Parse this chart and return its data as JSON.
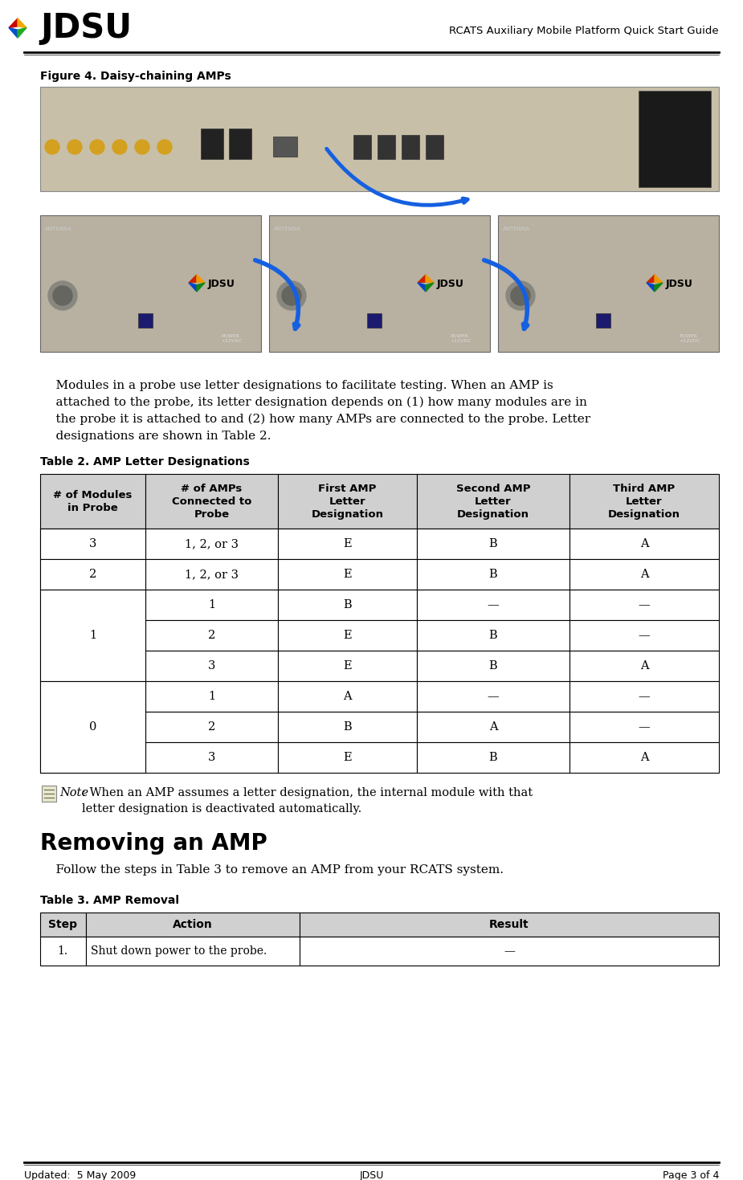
{
  "page_title": "RCATS Auxiliary Mobile Platform Quick Start Guide",
  "figure_caption": "Figure 4. Daisy-chaining AMPs",
  "body_text": "    Modules in a probe use letter designations to facilitate testing. When an AMP is\n    attached to the probe, its letter designation depends on (1) how many modules are in\n    the probe it is attached to and (2) how many AMPs are connected to the probe. Letter\n    designations are shown in Table 2.",
  "table2_title": "Table 2. AMP Letter Designations",
  "table2_headers": [
    "# of Modules\nin Probe",
    "# of AMPs\nConnected to\nProbe",
    "First AMP\nLetter\nDesignation",
    "Second AMP\nLetter\nDesignation",
    "Third AMP\nLetter\nDesignation"
  ],
  "table2_data": [
    [
      "3",
      "1, 2, or 3",
      "E",
      "B",
      "A"
    ],
    [
      "2",
      "1, 2, or 3",
      "E",
      "B",
      "A"
    ],
    [
      "1",
      "1",
      "B",
      "—",
      "—"
    ],
    [
      "",
      "2",
      "E",
      "B",
      "—"
    ],
    [
      "",
      "3",
      "E",
      "B",
      "A"
    ],
    [
      "0",
      "1",
      "A",
      "—",
      "—"
    ],
    [
      "",
      "2",
      "B",
      "A",
      "—"
    ],
    [
      "",
      "3",
      "E",
      "B",
      "A"
    ]
  ],
  "note_text_italic": "Note",
  "note_text_body": ": When an AMP assumes a letter designation, the internal module with that\nletter designation is deactivated automatically.",
  "section_title": "Removing an AMP",
  "section_body": "    Follow the steps in Table 3 to remove an AMP from your RCATS system.",
  "table3_title": "Table 3. AMP Removal",
  "table3_headers": [
    "Step",
    "Action",
    "Result"
  ],
  "table3_data": [
    [
      "1.",
      "Shut down power to the probe.",
      "—"
    ]
  ],
  "footer_left": "Updated:  5 May 2009",
  "footer_center": "JDSU",
  "footer_right": "Page 3 of 4",
  "bg_color": "#ffffff",
  "table_header_bg": "#d0d0d0",
  "table_border_color": "#000000"
}
